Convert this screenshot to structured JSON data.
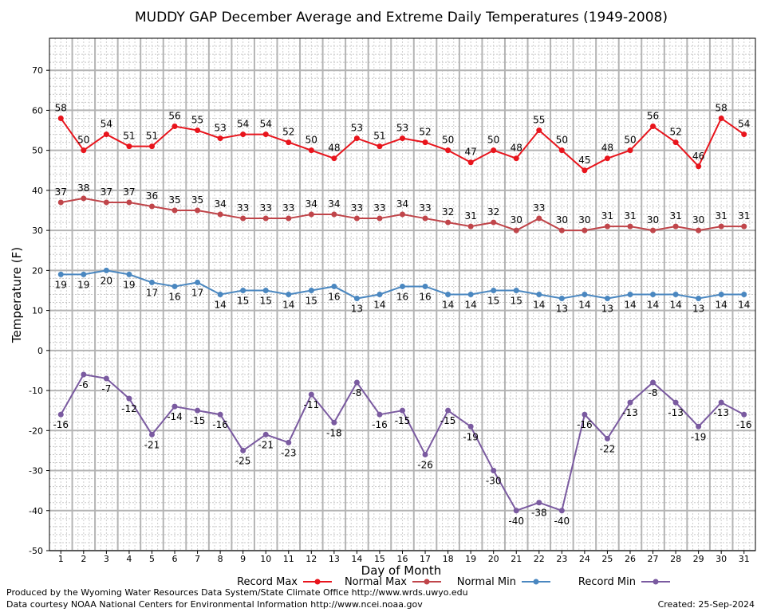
{
  "chart_data": {
    "type": "line",
    "title": "MUDDY GAP December Average and Extreme Daily Temperatures (1949-2008)",
    "xlabel": "Day of Month",
    "ylabel": "Temperature (F)",
    "ylim": [
      -50,
      78
    ],
    "yticks": [
      -50,
      -40,
      -30,
      -20,
      -10,
      0,
      10,
      20,
      30,
      40,
      50,
      60,
      70
    ],
    "grid": true,
    "legend_position": "bottom",
    "x": [
      1,
      2,
      3,
      4,
      5,
      6,
      7,
      8,
      9,
      10,
      11,
      12,
      13,
      14,
      15,
      16,
      17,
      18,
      19,
      20,
      21,
      22,
      23,
      24,
      25,
      26,
      27,
      28,
      29,
      30,
      31
    ],
    "series": [
      {
        "name": "Record Max",
        "color": "#e8141c",
        "values": [
          58,
          50,
          54,
          51,
          51,
          56,
          55,
          53,
          54,
          54,
          52,
          50,
          48,
          53,
          51,
          53,
          52,
          50,
          47,
          50,
          48,
          55,
          50,
          45,
          48,
          50,
          56,
          52,
          46,
          58,
          54
        ],
        "label_pos": "above"
      },
      {
        "name": "Normal Max",
        "color": "#c0454a",
        "values": [
          37,
          38,
          37,
          37,
          36,
          35,
          35,
          34,
          33,
          33,
          33,
          34,
          34,
          33,
          33,
          34,
          33,
          32,
          31,
          32,
          30,
          33,
          30,
          30,
          31,
          31,
          30,
          31,
          30,
          31,
          31
        ],
        "label_pos": "above"
      },
      {
        "name": "Normal Min",
        "color": "#4a87c0",
        "values": [
          19,
          19,
          20,
          19,
          17,
          16,
          17,
          14,
          15,
          15,
          14,
          15,
          16,
          13,
          14,
          16,
          16,
          14,
          14,
          15,
          15,
          14,
          13,
          14,
          13,
          14,
          14,
          14,
          13,
          14,
          14
        ],
        "label_pos": "below"
      },
      {
        "name": "Record Min",
        "color": "#7a5aa0",
        "values": [
          -16,
          -6,
          -7,
          -12,
          -21,
          -14,
          -15,
          -16,
          -25,
          -21,
          -23,
          -11,
          -18,
          -8,
          -16,
          -15,
          -26,
          -15,
          -19,
          -30,
          -40,
          -38,
          -40,
          -16,
          -22,
          -13,
          -8,
          -13,
          -19,
          -13,
          -16
        ],
        "label_pos": "below"
      }
    ]
  },
  "footer": {
    "produced_by": "Produced by the Wyoming Water Resources Data System/State Climate Office http://www.wrds.uwyo.edu",
    "courtesy": "Data courtesy NOAA National Centers for Environmental Information http://www.ncei.noaa.gov",
    "created": "Created:  25-Sep-2024"
  }
}
